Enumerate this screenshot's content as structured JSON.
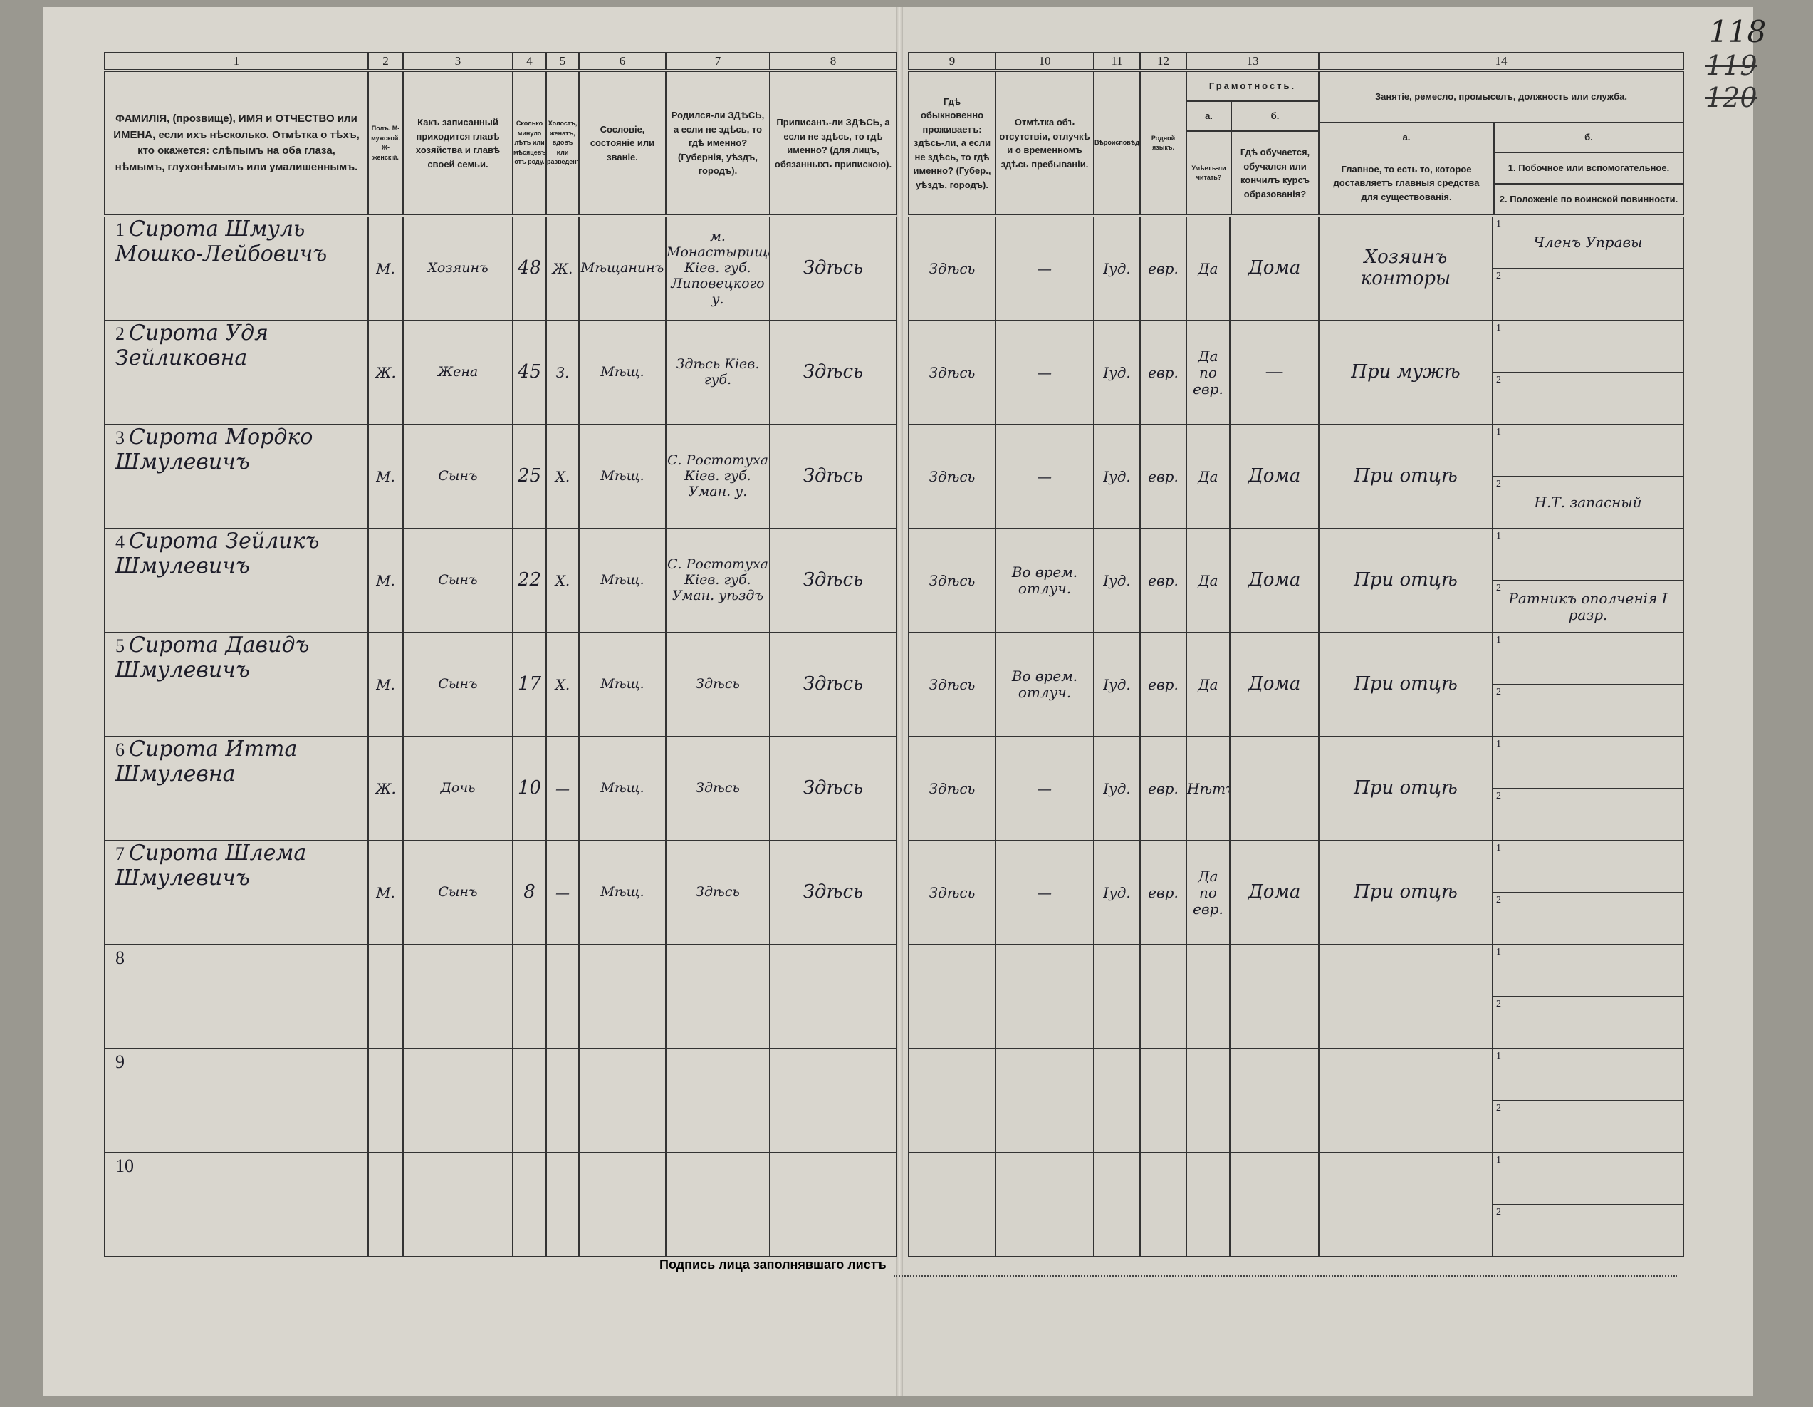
{
  "page_number": "118",
  "crossed_numbers": [
    "119",
    "120"
  ],
  "column_numbers": [
    "1",
    "2",
    "3",
    "4",
    "5",
    "6",
    "7",
    "8",
    "9",
    "10",
    "11",
    "12",
    "13",
    "14"
  ],
  "headers": {
    "c1": "ФАМИЛІЯ, (прозвище), ИМЯ и ОТЧЕСТВО или ИМЕНА, если ихъ нѣсколько. Отмѣтка о тѣхъ, кто окажется: слѣпымъ на оба глаза, нѣмымъ, глухонѣмымъ или умалишеннымъ.",
    "c2": "Полъ. М-мужской. Ж-женскій.",
    "c3": "Какъ записанный приходится главѣ хозяйства и главѣ своей семьи.",
    "c4": "Сколько минуло лѣтъ или мѣсяцевъ отъ роду.",
    "c5": "Холостъ, женатъ, вдовъ или разведенъ.",
    "c6": "Сословіе, состояніе или званіе.",
    "c7": "Родился-ли ЗДѢСЬ, а если не здѣсь, то гдѣ именно? (Губернія, уѣздъ, городъ).",
    "c8": "Приписанъ-ли ЗДѢСЬ, а если не здѣсь, то гдѣ именно? (для лицъ, обязанныхъ припискою).",
    "c9": "Гдѣ обыкновенно проживаетъ: здѣсь-ли, а если не здѣсь, то гдѣ именно? (Губер., уѣздъ, городъ).",
    "c10": "Отмѣтка объ отсутствіи, отлучкѣ и о временномъ здѣсь пребываніи.",
    "c11": "Вѣроисповѣданіе.",
    "c12": "Родной языкъ.",
    "c13": "Грамотность.",
    "c13a": "а.",
    "c13a_text": "Умѣетъ-ли читать?",
    "c13b": "б.",
    "c13b_text": "Гдѣ обучается, обучался или кончилъ курсъ образованія?",
    "c14": "Занятіе, ремесло, промыселъ, должность или служба.",
    "c14a": "а.",
    "c14a_text": "Главное, то есть то, которое доставляетъ главныя средства для существованія.",
    "c14b": "б.",
    "c14b_1": "1. Побочное или вспомогательное.",
    "c14b_2": "2. Положеніе по воинской повинности."
  },
  "rows": [
    {
      "n": "1",
      "name": "Сирота Шмуль Мошко-Лейбовичъ",
      "sex": "М.",
      "relation": "Хозяинъ",
      "age": "48",
      "marital": "Ж.",
      "estate": "Мѣщанинъ",
      "born": "м. Монастырище Кіев. губ. Липовецкого у.",
      "registered": "Здѣсь",
      "resides": "Здѣсь",
      "absence": "—",
      "religion": "Іуд.",
      "language": "евр.",
      "literate": "Да",
      "education": "Дома",
      "occupation": "Хозяинъ конторы",
      "side1": "Членъ Управы",
      "side2": ""
    },
    {
      "n": "2",
      "name": "Сирота Удя Зейликовна",
      "sex": "Ж.",
      "relation": "Жена",
      "age": "45",
      "marital": "З.",
      "estate": "Мѣщ.",
      "born": "Здѣсь Кіев. губ.",
      "registered": "Здѣсь",
      "resides": "Здѣсь",
      "absence": "—",
      "religion": "Іуд.",
      "language": "евр.",
      "literate": "Да по евр.",
      "education": "—",
      "occupation": "При мужѣ",
      "side1": "",
      "side2": ""
    },
    {
      "n": "3",
      "name": "Сирота Мордко Шмулевичъ",
      "sex": "М.",
      "relation": "Сынъ",
      "age": "25",
      "marital": "Х.",
      "estate": "Мѣщ.",
      "born": "С. Ростотуха Кіев. губ. Уман. у.",
      "registered": "Здѣсь",
      "resides": "Здѣсь",
      "absence": "—",
      "religion": "Іуд.",
      "language": "евр.",
      "literate": "Да",
      "education": "Дома",
      "occupation": "При отцѣ",
      "side1": "",
      "side2": "Н.Т. запасный"
    },
    {
      "n": "4",
      "name": "Сирота Зейликъ Шмулевичъ",
      "sex": "М.",
      "relation": "Сынъ",
      "age": "22",
      "marital": "Х.",
      "estate": "Мѣщ.",
      "born": "С. Ростотуха Кіев. губ. Уман. уѣздъ",
      "registered": "Здѣсь",
      "resides": "Здѣсь",
      "absence": "Во врем. отлуч.",
      "religion": "Іуд.",
      "language": "евр.",
      "literate": "Да",
      "education": "Дома",
      "occupation": "При отцѣ",
      "side1": "",
      "side2": "Ратникъ ополченія I разр."
    },
    {
      "n": "5",
      "name": "Сирота Давидъ Шмулевичъ",
      "sex": "М.",
      "relation": "Сынъ",
      "age": "17",
      "marital": "Х.",
      "estate": "Мѣщ.",
      "born": "Здѣсь",
      "registered": "Здѣсь",
      "resides": "Здѣсь",
      "absence": "Во врем. отлуч.",
      "religion": "Іуд.",
      "language": "евр.",
      "literate": "Да",
      "education": "Дома",
      "occupation": "При отцѣ",
      "side1": "",
      "side2": ""
    },
    {
      "n": "6",
      "name": "Сирота Итта Шмулевна",
      "sex": "Ж.",
      "relation": "Дочь",
      "age": "10",
      "marital": "—",
      "estate": "Мѣщ.",
      "born": "Здѣсь",
      "registered": "Здѣсь",
      "resides": "Здѣсь",
      "absence": "—",
      "religion": "Іуд.",
      "language": "евр.",
      "literate": "Нѣтъ",
      "education": "",
      "occupation": "При отцѣ",
      "side1": "",
      "side2": ""
    },
    {
      "n": "7",
      "name": "Сирота Шлема Шмулевичъ",
      "sex": "М.",
      "relation": "Сынъ",
      "age": "8",
      "marital": "—",
      "estate": "Мѣщ.",
      "born": "Здѣсь",
      "registered": "Здѣсь",
      "resides": "Здѣсь",
      "absence": "—",
      "religion": "Іуд.",
      "language": "евр.",
      "literate": "Да по евр.",
      "education": "Дома",
      "occupation": "При отцѣ",
      "side1": "",
      "side2": ""
    },
    {
      "n": "8"
    },
    {
      "n": "9"
    },
    {
      "n": "10"
    }
  ],
  "footer": {
    "signature_label": "Подпись лица заполнявшаго листъ"
  },
  "row_subnumbers": [
    "1",
    "2"
  ]
}
